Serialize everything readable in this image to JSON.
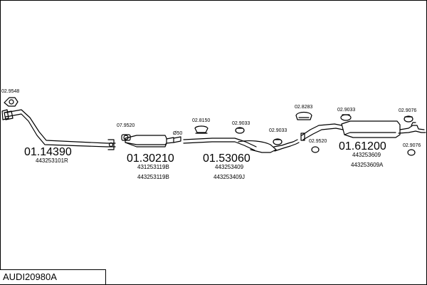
{
  "diagram_title": "AUDI20980A",
  "parts": [
    {
      "number": "01.14390",
      "oe_codes": [
        "443253101R"
      ]
    },
    {
      "number": "01.30210",
      "oe_codes": [
        "431253119B",
        "443253119B"
      ]
    },
    {
      "number": "01.53060",
      "oe_codes": [
        "443253409",
        "443253409J"
      ]
    },
    {
      "number": "01.61200",
      "oe_codes": [
        "443253609",
        "443253609A"
      ]
    }
  ],
  "fittings": [
    "02.9548",
    "07.9520",
    "02.8150",
    "02.9033",
    "02.9033",
    "02.8283",
    "02.9033",
    "02.9520",
    "02.9076",
    "02.9076"
  ],
  "dimension_label": "Ø50"
}
